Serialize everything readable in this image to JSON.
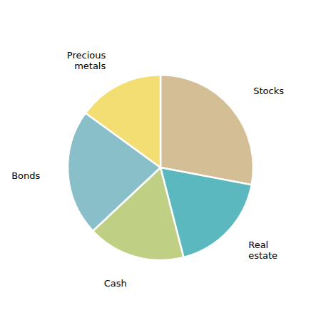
{
  "chart_data": {
    "type": "pie",
    "categories": [
      "Stocks",
      "Real\nestate",
      "Cash",
      "Bonds",
      "Precious\nmetals"
    ],
    "values": [
      28,
      18,
      17,
      22,
      15
    ],
    "colors": [
      "#D4BE96",
      "#5AB8BE",
      "#BFCF84",
      "#88BFC8",
      "#F2DE72"
    ]
  }
}
